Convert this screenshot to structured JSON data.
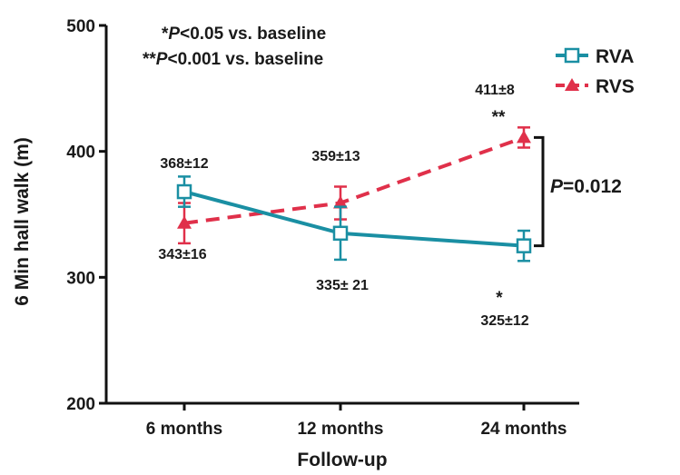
{
  "chart_data": {
    "type": "line",
    "xlabel": "Follow-up",
    "ylabel": "6 Min hall walk (m)",
    "categories": [
      "6 months",
      "12 months",
      "24 months"
    ],
    "ylim": [
      200,
      500
    ],
    "yticks": [
      200,
      300,
      400,
      500
    ],
    "legend_position": "top-right",
    "series": [
      {
        "name": "RVA",
        "color": "#1a8fa3",
        "line_style": "solid",
        "marker": "open-square",
        "values": [
          368,
          335,
          325
        ],
        "errors": [
          12,
          21,
          12
        ],
        "labels": [
          "368±12",
          "335± 21",
          "325±12"
        ],
        "significance": [
          "",
          "",
          "*"
        ]
      },
      {
        "name": "RVS",
        "color": "#e0304a",
        "line_style": "dashed",
        "marker": "filled-triangle",
        "values": [
          343,
          359,
          411
        ],
        "errors": [
          16,
          13,
          8
        ],
        "labels": [
          "343±16",
          "359±13",
          "411±8"
        ],
        "significance": [
          "",
          "",
          "**"
        ]
      }
    ],
    "annotations": {
      "notes": [
        {
          "prefix": "*",
          "p": "P",
          "rest": "<0.05 vs. baseline"
        },
        {
          "prefix": "**",
          "p": "P",
          "rest": "<0.001 vs. baseline"
        }
      ],
      "comparison": {
        "p": "P",
        "rest": "=0.012"
      }
    }
  }
}
